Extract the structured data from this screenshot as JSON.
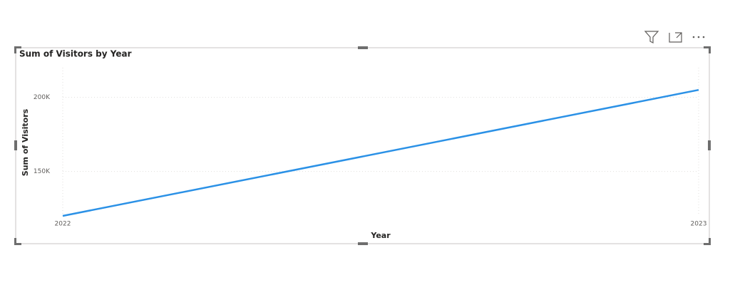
{
  "chart_data": {
    "type": "line",
    "title": "Sum of Visitors by Year",
    "x_label": "Year",
    "y_label": "Sum of Visitors",
    "x": [
      2022,
      2023
    ],
    "values": [
      120000,
      205000
    ],
    "color": "#2b91e6",
    "xlim": [
      2022,
      2023
    ],
    "xticks": [
      2022,
      2023
    ],
    "ylim": [
      120000,
      220000
    ],
    "yticks": [
      {
        "value": 150000,
        "label": "150K"
      },
      {
        "value": 200000,
        "label": "200K"
      }
    ],
    "grid": true
  }
}
